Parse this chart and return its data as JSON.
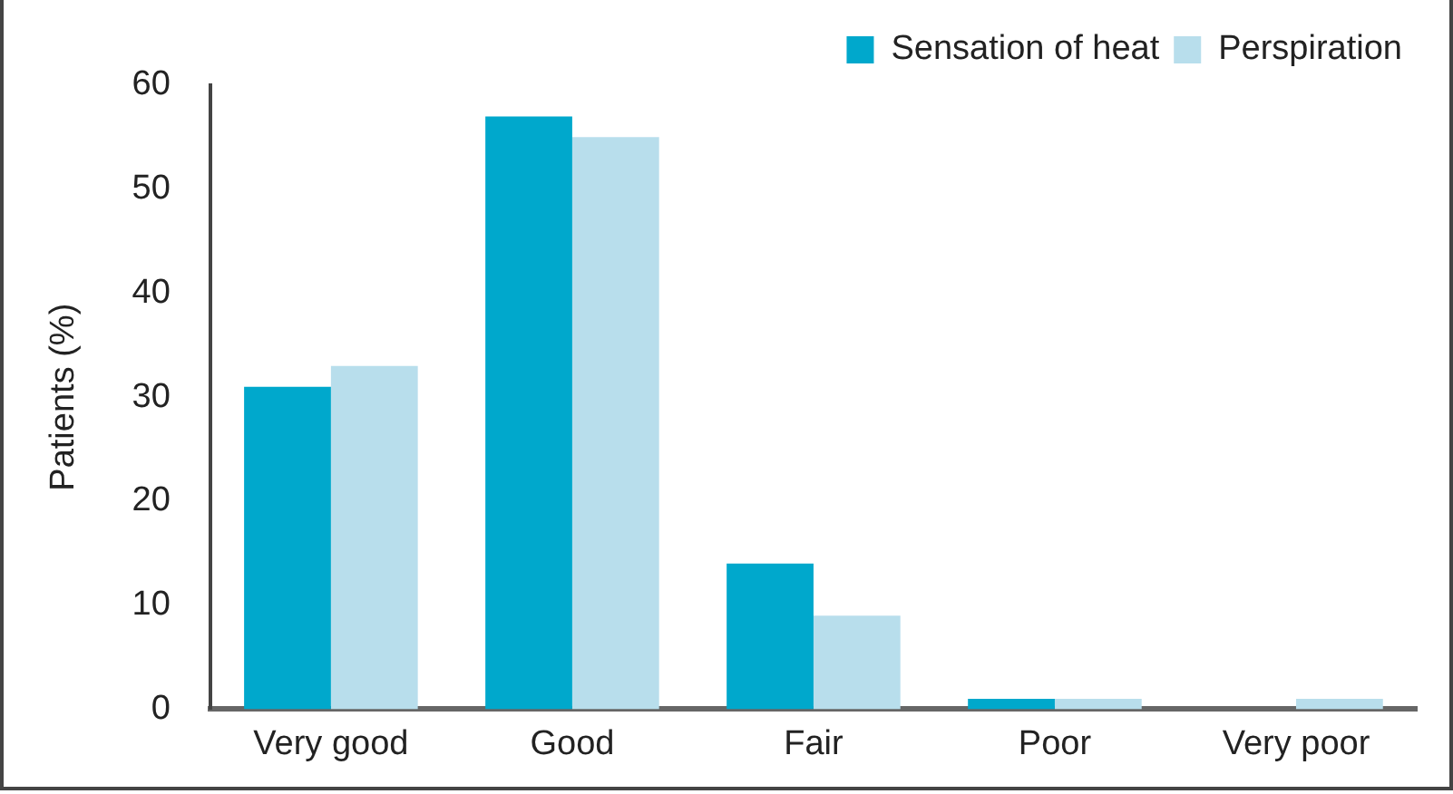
{
  "chart_data": {
    "type": "bar",
    "ylabel": "Patients (%)",
    "categories": [
      "Very good",
      "Good",
      "Fair",
      "Poor",
      "Very poor"
    ],
    "series": [
      {
        "name": "Sensation of heat",
        "color": "#00a8cc",
        "values": [
          31,
          57,
          14,
          1,
          0
        ]
      },
      {
        "name": "Perspiration",
        "color": "#b8deec",
        "values": [
          33,
          55,
          9,
          1,
          1
        ]
      }
    ],
    "ylim": [
      0,
      60
    ],
    "yticks": [
      0,
      10,
      20,
      30,
      40,
      50,
      60
    ],
    "grid": false,
    "legend": "top right"
  }
}
